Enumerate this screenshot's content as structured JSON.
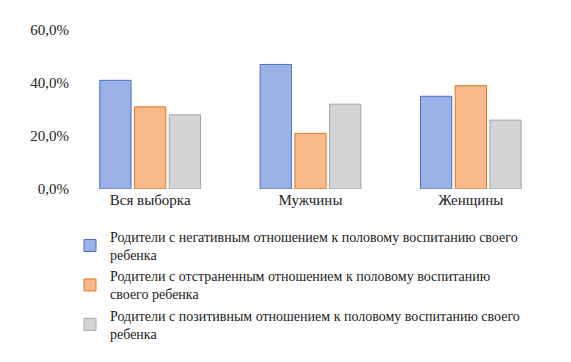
{
  "chart_data": {
    "type": "bar",
    "categories": [
      "Вся выборка",
      "Мужчины",
      "Женщины"
    ],
    "series": [
      {
        "name": "Родители с негативным отношением к половому воспитанию своего ребенка",
        "color": "#9bb2e6",
        "values": [
          41,
          47,
          35
        ]
      },
      {
        "name": "Родители с отстраненным отношением к половому воспитанию своего ребенка",
        "color": "#f7b98a",
        "values": [
          31,
          21,
          39
        ]
      },
      {
        "name": "Родители с позитивным отношением к половому воспитанию своего ребенка",
        "color": "#d4d4d4",
        "values": [
          28,
          32,
          26
        ]
      }
    ],
    "ylim": [
      0,
      60
    ],
    "yticks": [
      {
        "value": 0,
        "label": "0,0%"
      },
      {
        "value": 20,
        "label": "20,0%"
      },
      {
        "value": 40,
        "label": "40,0%"
      },
      {
        "value": 60,
        "label": "60,0%"
      }
    ],
    "grid": false,
    "legend": "bottom"
  }
}
